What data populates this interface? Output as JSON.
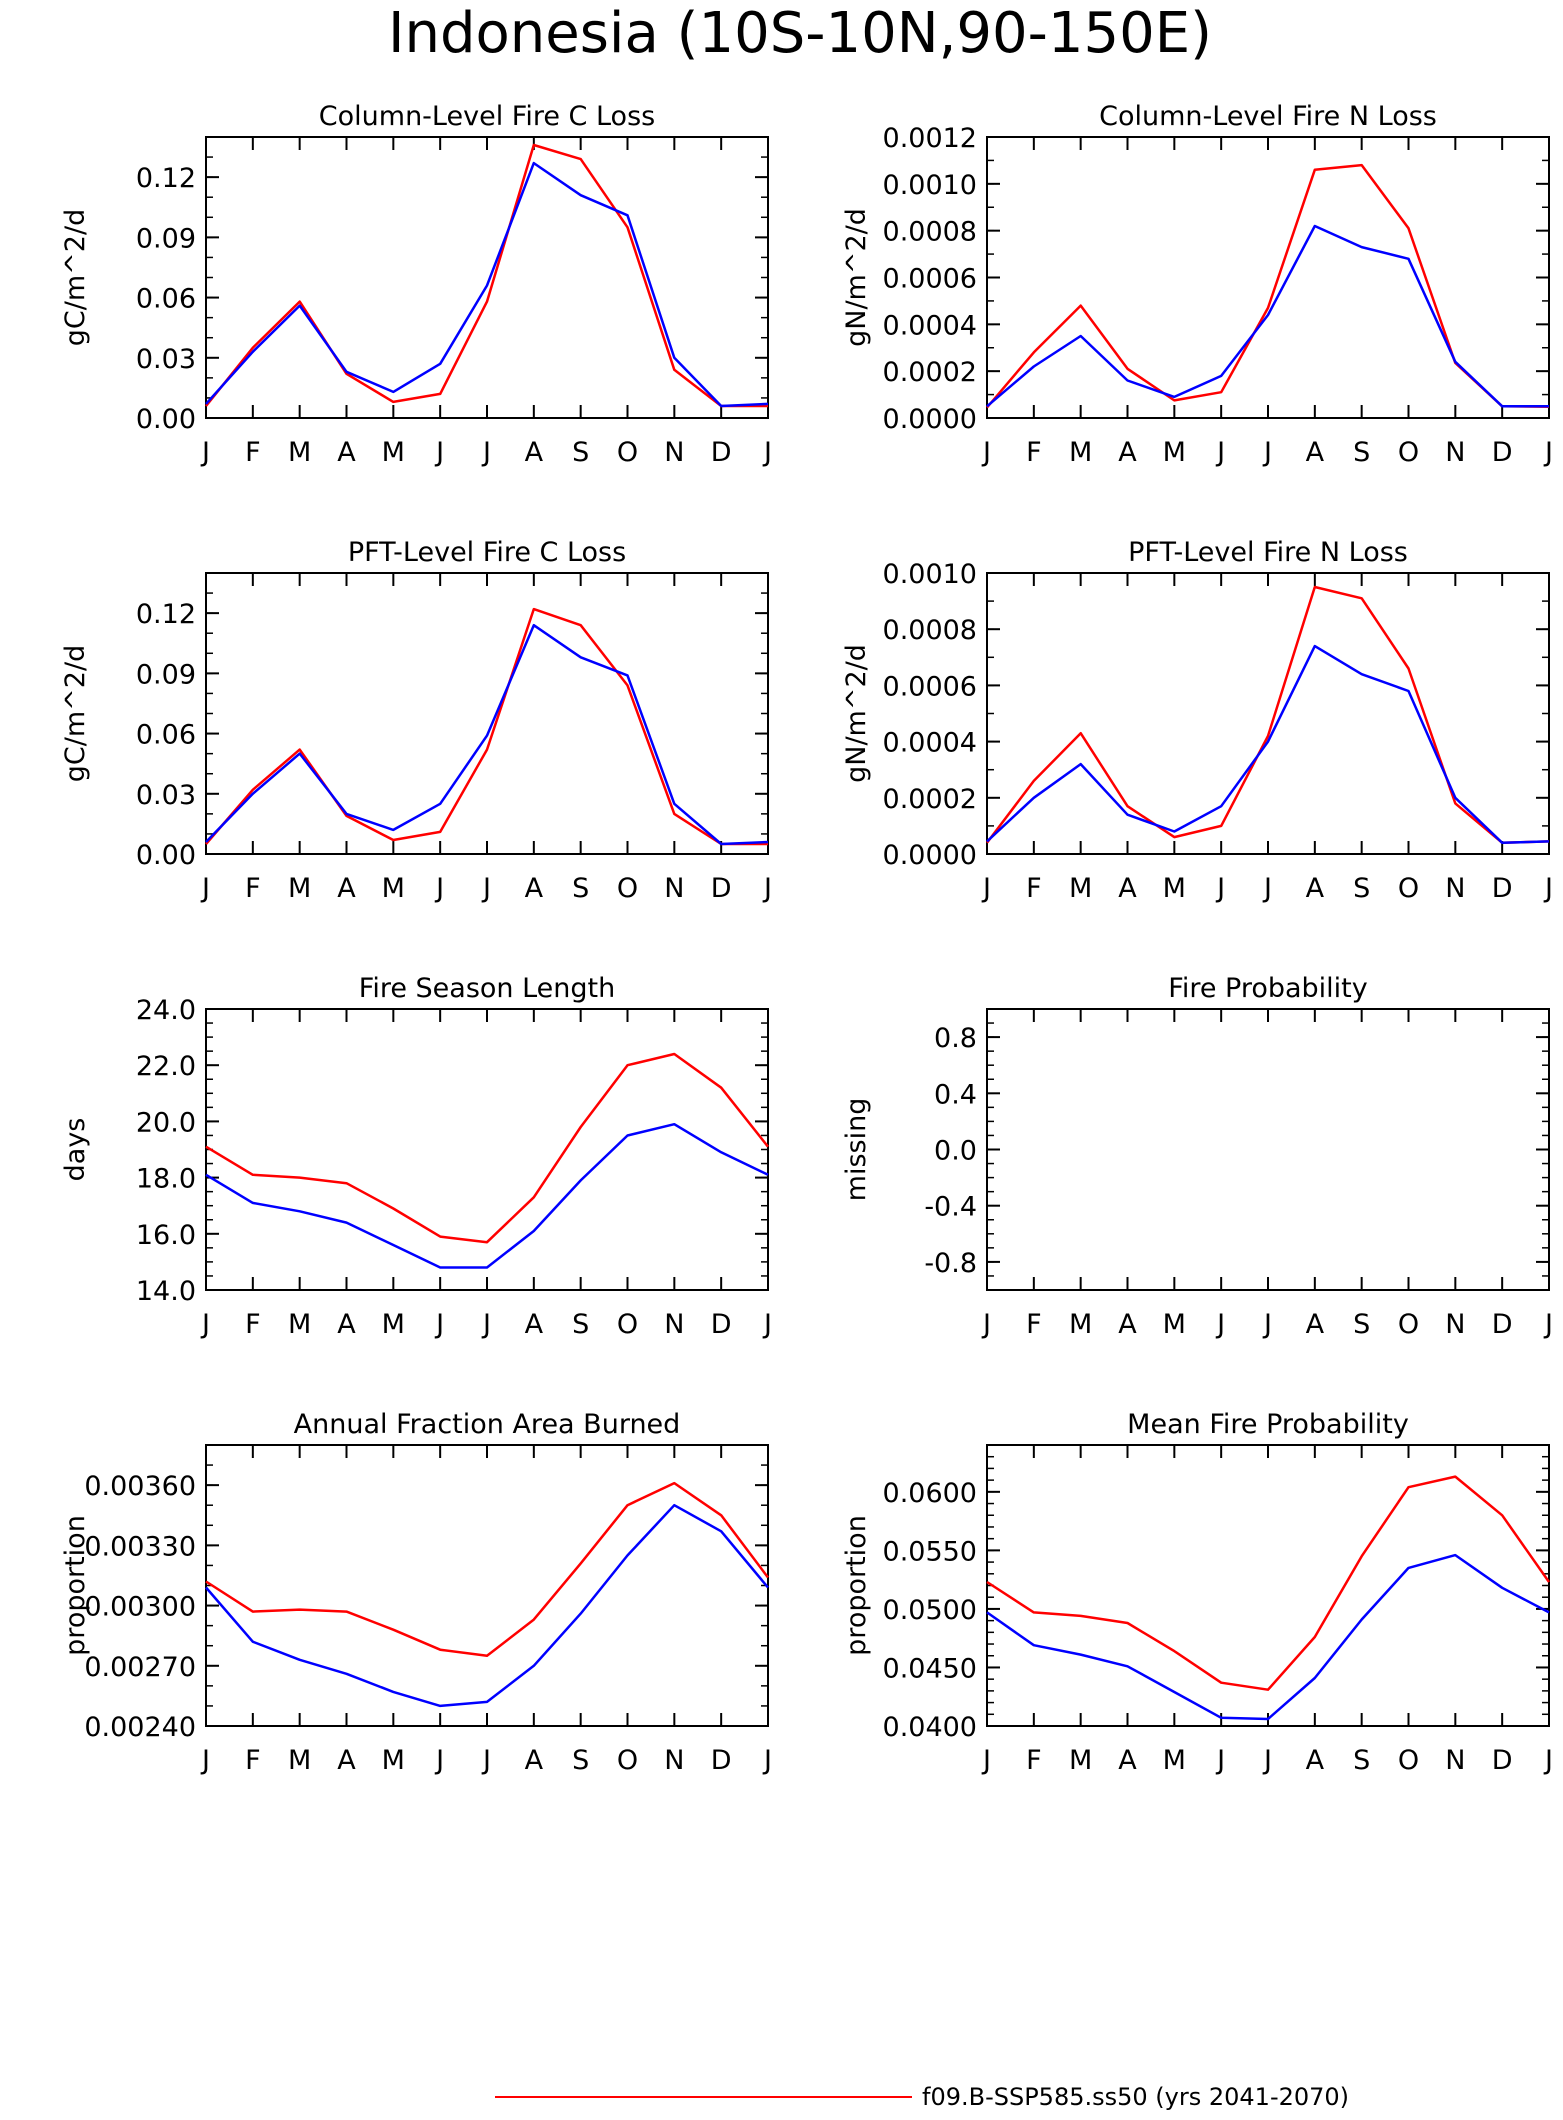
{
  "figure": {
    "title": "Indonesia (10S-10N,90-150E)"
  },
  "legend": {
    "entries": [
      {
        "label": "f09.B-SSP585.ss50 (yrs 2041-2070)",
        "color": "#ff0000"
      }
    ]
  },
  "colors": {
    "red": "#ff0000",
    "blue": "#0000ff",
    "axis": "#000000"
  },
  "chart_data": [
    {
      "type": "line",
      "title": "Column-Level Fire C Loss",
      "ylabel": "gC/m^2/d",
      "x_ticks": [
        "J",
        "F",
        "M",
        "A",
        "M",
        "J",
        "J",
        "A",
        "S",
        "O",
        "N",
        "D",
        "J"
      ],
      "ylim": [
        0,
        0.14
      ],
      "y_ticks": [
        0.0,
        0.03,
        0.06,
        0.09,
        0.12
      ],
      "y_tick_labels": [
        "0.00",
        "0.03",
        "0.06",
        "0.09",
        "0.12"
      ],
      "y_minor_step": 0.01,
      "series": [
        {
          "color": "#ff0000",
          "values": [
            0.006,
            0.035,
            0.058,
            0.022,
            0.008,
            0.012,
            0.058,
            0.136,
            0.129,
            0.095,
            0.024,
            0.006,
            0.006
          ]
        },
        {
          "color": "#0000ff",
          "values": [
            0.007,
            0.033,
            0.056,
            0.023,
            0.013,
            0.027,
            0.066,
            0.127,
            0.111,
            0.101,
            0.03,
            0.006,
            0.007
          ]
        }
      ]
    },
    {
      "type": "line",
      "title": "Column-Level Fire N Loss",
      "ylabel": "gN/m^2/d",
      "x_ticks": [
        "J",
        "F",
        "M",
        "A",
        "M",
        "J",
        "J",
        "A",
        "S",
        "O",
        "N",
        "D",
        "J"
      ],
      "ylim": [
        0,
        0.0012
      ],
      "y_ticks": [
        0.0,
        0.0002,
        0.0004,
        0.0006,
        0.0008,
        0.001,
        0.0012
      ],
      "y_tick_labels": [
        "0.0000",
        "0.0002",
        "0.0004",
        "0.0006",
        "0.0008",
        "0.0010",
        "0.0012"
      ],
      "y_minor_step": 0.0001,
      "series": [
        {
          "color": "#ff0000",
          "values": [
            4.5e-05,
            0.00028,
            0.00048,
            0.00021,
            7.5e-05,
            0.00011,
            0.00047,
            0.00106,
            0.00108,
            0.00081,
            0.000235,
            5e-05,
            4.8e-05
          ]
        },
        {
          "color": "#0000ff",
          "values": [
            5e-05,
            0.00022,
            0.00035,
            0.00016,
            9e-05,
            0.00018,
            0.00044,
            0.00082,
            0.00073,
            0.00068,
            0.00024,
            5e-05,
            5e-05
          ]
        }
      ]
    },
    {
      "type": "line",
      "title": "PFT-Level Fire C Loss",
      "ylabel": "gC/m^2/d",
      "x_ticks": [
        "J",
        "F",
        "M",
        "A",
        "M",
        "J",
        "J",
        "A",
        "S",
        "O",
        "N",
        "D",
        "J"
      ],
      "ylim": [
        0,
        0.14
      ],
      "y_ticks": [
        0.0,
        0.03,
        0.06,
        0.09,
        0.12
      ],
      "y_tick_labels": [
        "0.00",
        "0.03",
        "0.06",
        "0.09",
        "0.12"
      ],
      "y_minor_step": 0.01,
      "series": [
        {
          "color": "#ff0000",
          "values": [
            0.005,
            0.032,
            0.052,
            0.019,
            0.007,
            0.011,
            0.052,
            0.122,
            0.114,
            0.084,
            0.02,
            0.005,
            0.005
          ]
        },
        {
          "color": "#0000ff",
          "values": [
            0.006,
            0.03,
            0.05,
            0.02,
            0.012,
            0.025,
            0.059,
            0.114,
            0.098,
            0.089,
            0.025,
            0.005,
            0.006
          ]
        }
      ]
    },
    {
      "type": "line",
      "title": "PFT-Level Fire N Loss",
      "ylabel": "gN/m^2/d",
      "x_ticks": [
        "J",
        "F",
        "M",
        "A",
        "M",
        "J",
        "J",
        "A",
        "S",
        "O",
        "N",
        "D",
        "J"
      ],
      "ylim": [
        0,
        0.001
      ],
      "y_ticks": [
        0.0,
        0.0002,
        0.0004,
        0.0006,
        0.0008,
        0.001
      ],
      "y_tick_labels": [
        "0.0000",
        "0.0002",
        "0.0004",
        "0.0006",
        "0.0008",
        "0.0010"
      ],
      "y_minor_step": 0.0001,
      "series": [
        {
          "color": "#ff0000",
          "values": [
            4e-05,
            0.00026,
            0.00043,
            0.00017,
            6e-05,
            0.0001,
            0.00042,
            0.00095,
            0.00091,
            0.00066,
            0.00018,
            4e-05,
            4.5e-05
          ]
        },
        {
          "color": "#0000ff",
          "values": [
            4.5e-05,
            0.0002,
            0.00032,
            0.00014,
            8e-05,
            0.00017,
            0.0004,
            0.00074,
            0.00064,
            0.00058,
            0.0002,
            4e-05,
            4.5e-05
          ]
        }
      ]
    },
    {
      "type": "line",
      "title": "Fire Season Length",
      "ylabel": "days",
      "x_ticks": [
        "J",
        "F",
        "M",
        "A",
        "M",
        "J",
        "J",
        "A",
        "S",
        "O",
        "N",
        "D",
        "J"
      ],
      "ylim": [
        14,
        24
      ],
      "y_ticks": [
        14,
        16,
        18,
        20,
        22,
        24
      ],
      "y_tick_labels": [
        "14.0",
        "16.0",
        "18.0",
        "20.0",
        "22.0",
        "24.0"
      ],
      "y_minor_step": 0.5,
      "series": [
        {
          "color": "#ff0000",
          "values": [
            19.1,
            18.1,
            18.0,
            17.8,
            16.9,
            15.9,
            15.7,
            17.3,
            19.8,
            22.0,
            22.4,
            21.2,
            19.1
          ]
        },
        {
          "color": "#0000ff",
          "values": [
            18.1,
            17.1,
            16.8,
            16.4,
            15.6,
            14.8,
            14.8,
            16.1,
            17.9,
            19.5,
            19.9,
            18.9,
            18.1
          ]
        }
      ]
    },
    {
      "type": "line",
      "title": "Fire Probability",
      "ylabel": "missing",
      "x_ticks": [
        "J",
        "F",
        "M",
        "A",
        "M",
        "J",
        "J",
        "A",
        "S",
        "O",
        "N",
        "D",
        "J"
      ],
      "ylim": [
        -1,
        1
      ],
      "y_ticks": [
        -0.8,
        -0.4,
        0.0,
        0.4,
        0.8
      ],
      "y_tick_labels": [
        "-0.8",
        "-0.4",
        "0.0",
        "0.4",
        "0.8"
      ],
      "y_minor_step": 0.1,
      "series": []
    },
    {
      "type": "line",
      "title": "Annual Fraction Area Burned",
      "ylabel": "proportion",
      "x_ticks": [
        "J",
        "F",
        "M",
        "A",
        "M",
        "J",
        "J",
        "A",
        "S",
        "O",
        "N",
        "D",
        "J"
      ],
      "ylim": [
        0.0024,
        0.0038
      ],
      "y_ticks": [
        0.0024,
        0.0027,
        0.003,
        0.0033,
        0.0036
      ],
      "y_tick_labels": [
        "0.00240",
        "0.00270",
        "0.00300",
        "0.00330",
        "0.00360"
      ],
      "y_minor_step": 0.0001,
      "series": [
        {
          "color": "#ff0000",
          "values": [
            0.00312,
            0.00297,
            0.00298,
            0.00297,
            0.00288,
            0.00278,
            0.00275,
            0.00293,
            0.00321,
            0.0035,
            0.00361,
            0.00345,
            0.00314
          ]
        },
        {
          "color": "#0000ff",
          "values": [
            0.00309,
            0.00282,
            0.00273,
            0.00266,
            0.00257,
            0.0025,
            0.00252,
            0.0027,
            0.00296,
            0.00325,
            0.0035,
            0.00337,
            0.00309
          ]
        }
      ]
    },
    {
      "type": "line",
      "title": "Mean Fire Probability",
      "ylabel": "proportion",
      "x_ticks": [
        "J",
        "F",
        "M",
        "A",
        "M",
        "J",
        "J",
        "A",
        "S",
        "O",
        "N",
        "D",
        "J"
      ],
      "ylim": [
        0.04,
        0.064
      ],
      "y_ticks": [
        0.04,
        0.045,
        0.05,
        0.055,
        0.06
      ],
      "y_tick_labels": [
        "0.0400",
        "0.0450",
        "0.0500",
        "0.0550",
        "0.0600"
      ],
      "y_minor_step": 0.001,
      "series": [
        {
          "color": "#ff0000",
          "values": [
            0.0523,
            0.0497,
            0.0494,
            0.0488,
            0.0464,
            0.0437,
            0.0431,
            0.0476,
            0.0545,
            0.0604,
            0.0613,
            0.058,
            0.0523
          ]
        },
        {
          "color": "#0000ff",
          "values": [
            0.0497,
            0.0469,
            0.0461,
            0.0451,
            0.0429,
            0.0407,
            0.0406,
            0.0441,
            0.0491,
            0.0535,
            0.0546,
            0.0518,
            0.0497
          ]
        }
      ]
    }
  ]
}
